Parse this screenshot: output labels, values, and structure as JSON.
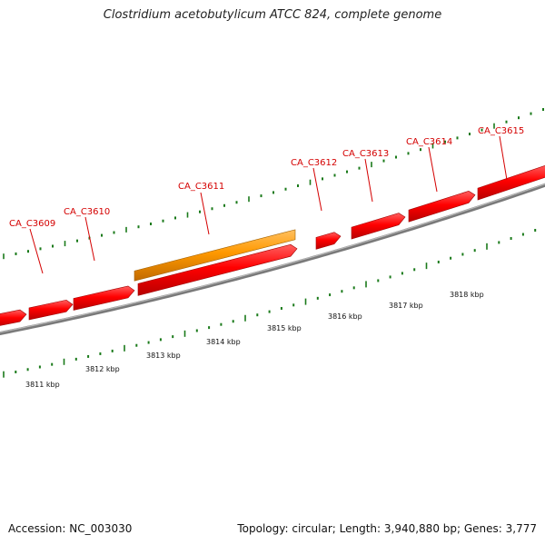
{
  "title": "Clostridium acetobutylicum ATCC 824, complete genome",
  "footer": {
    "accession": "Accession: NC_003030",
    "stats": "Topology: circular; Length: 3,940,880 bp; Genes: 3,777"
  },
  "colors": {
    "gene": "#ff0000",
    "gene_highlight": "#ff9900",
    "backbone": "#808080",
    "tick": "#1a7a1a",
    "label": "#d40000"
  },
  "genes": [
    {
      "name": "CA_C3609",
      "label": "CA_C3609",
      "color": "red"
    },
    {
      "name": "CA_C3610",
      "label": "CA_C3610",
      "color": "red"
    },
    {
      "name": "CA_C3611",
      "label": "CA_C3611",
      "color": "red"
    },
    {
      "name": "CA_C3611",
      "label": "",
      "color": "orange"
    },
    {
      "name": "CA_C3612",
      "label": "CA_C3612",
      "color": "red"
    },
    {
      "name": "CA_C3613",
      "label": "CA_C3613",
      "color": "red"
    },
    {
      "name": "CA_C3614",
      "label": "CA_C3614",
      "color": "red"
    },
    {
      "name": "CA_C3615",
      "label": "CA_C3615",
      "color": "red"
    }
  ],
  "scale_labels": [
    "3811 kbp",
    "3812 kbp",
    "3813 kbp",
    "3814 kbp",
    "3815 kbp",
    "3816 kbp",
    "3817 kbp",
    "3818 kbp"
  ]
}
